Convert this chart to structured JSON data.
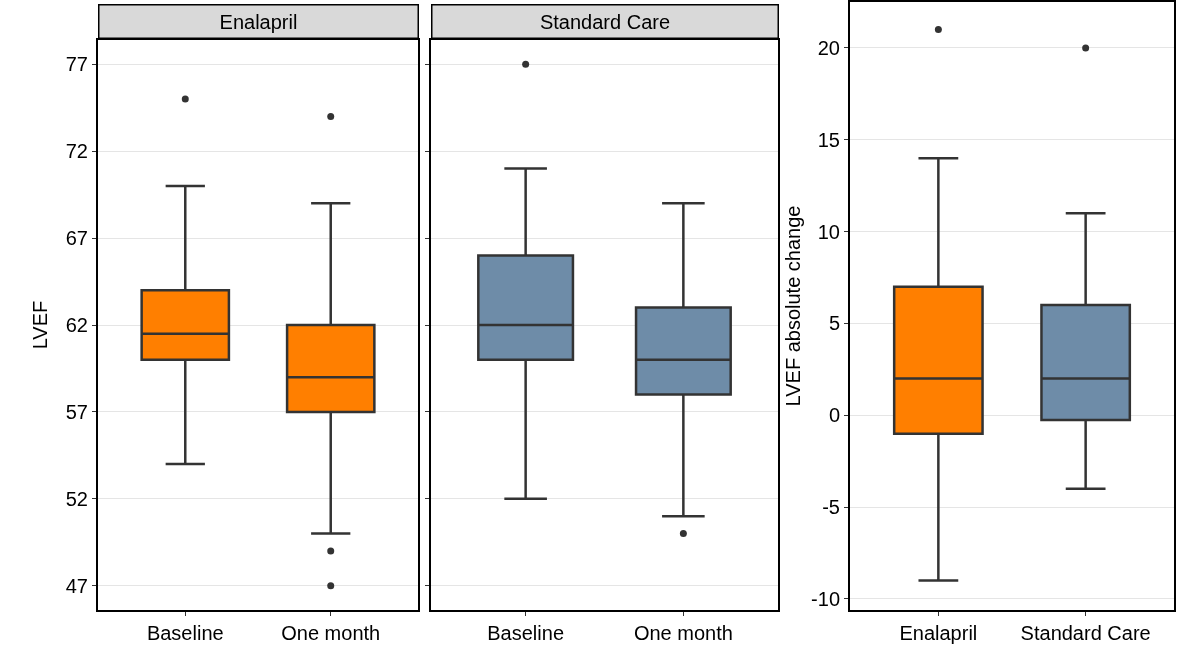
{
  "chart_data": [
    {
      "type": "box",
      "title": "Enalapril",
      "ylabel": "LVEF",
      "categories": [
        "Baseline",
        "One month"
      ],
      "color": "#ff7f00",
      "boxes": [
        {
          "low": 54,
          "q1": 60,
          "median": 61.5,
          "q3": 64,
          "high": 70,
          "outliers": [
            75
          ]
        },
        {
          "low": 50,
          "q1": 57,
          "median": 59,
          "q3": 62,
          "high": 69,
          "outliers": [
            74,
            49,
            47
          ]
        }
      ],
      "ylim": [
        45.6,
        78.4
      ],
      "yticks": [
        47,
        52,
        57,
        62,
        67,
        72,
        77
      ],
      "grid": "y"
    },
    {
      "type": "box",
      "title": "Standard Care",
      "categories": [
        "Baseline",
        "One month"
      ],
      "color": "#6e8ca8",
      "boxes": [
        {
          "low": 52,
          "q1": 60,
          "median": 62,
          "q3": 66,
          "high": 71,
          "outliers": [
            77
          ]
        },
        {
          "low": 51,
          "q1": 58,
          "median": 60,
          "q3": 63,
          "high": 69,
          "outliers": [
            50
          ]
        }
      ],
      "ylim": [
        45.6,
        78.4
      ],
      "yticks": [
        47,
        52,
        57,
        62,
        67,
        72,
        77
      ],
      "grid": "y",
      "tick_labels": "x"
    },
    {
      "type": "box",
      "ylabel": "LVEF absolute change",
      "categories": [
        "Enalapril",
        "Standard Care"
      ],
      "colors": [
        "#ff7f00",
        "#6e8ca8"
      ],
      "boxes": [
        {
          "low": -9,
          "q1": -1,
          "median": 2,
          "q3": 7,
          "high": 14,
          "outliers": [
            21
          ]
        },
        {
          "low": -4,
          "q1": -0.25,
          "median": 2,
          "q3": 6,
          "high": 11,
          "outliers": [
            20
          ]
        }
      ],
      "ylim": [
        -10.6,
        22.5
      ],
      "yticks": [
        -10,
        -5,
        0,
        5,
        10,
        15,
        20
      ],
      "grid": "y"
    }
  ]
}
